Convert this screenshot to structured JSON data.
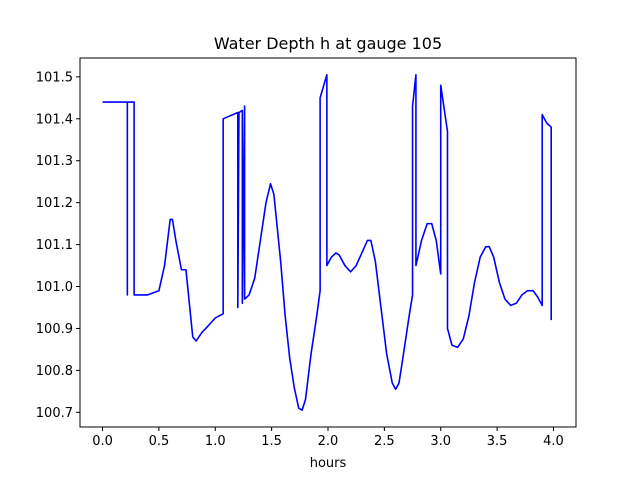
{
  "chart_data": {
    "type": "line",
    "title": "Water Depth h at gauge 105",
    "xlabel": "hours",
    "ylabel": "",
    "xlim": [
      -0.2,
      4.2
    ],
    "ylim": [
      100.665,
      101.545
    ],
    "xticks": [
      0.0,
      0.5,
      1.0,
      1.5,
      2.0,
      2.5,
      3.0,
      3.5,
      4.0
    ],
    "xtick_labels": [
      "0.0",
      "0.5",
      "1.0",
      "1.5",
      "2.0",
      "2.5",
      "3.0",
      "3.5",
      "4.0"
    ],
    "yticks": [
      100.7,
      100.8,
      100.9,
      101.0,
      101.1,
      101.2,
      101.3,
      101.4,
      101.5
    ],
    "ytick_labels": [
      "100.7",
      "100.8",
      "100.9",
      "101.0",
      "101.1",
      "101.2",
      "101.3",
      "101.4",
      "101.5"
    ],
    "grid": false,
    "series": [
      {
        "color": "#0000ff",
        "points": [
          [
            0.0,
            101.44
          ],
          [
            0.22,
            101.44
          ],
          [
            0.22,
            100.98
          ],
          [
            0.22,
            101.44
          ],
          [
            0.28,
            101.44
          ],
          [
            0.28,
            100.98
          ],
          [
            0.4,
            100.98
          ],
          [
            0.5,
            100.99
          ],
          [
            0.55,
            101.05
          ],
          [
            0.6,
            101.16
          ],
          [
            0.62,
            101.16
          ],
          [
            0.65,
            101.11
          ],
          [
            0.7,
            101.04
          ],
          [
            0.74,
            101.04
          ],
          [
            0.77,
            100.96
          ],
          [
            0.8,
            100.88
          ],
          [
            0.83,
            100.87
          ],
          [
            0.88,
            100.89
          ],
          [
            0.95,
            100.91
          ],
          [
            1.0,
            100.925
          ],
          [
            1.07,
            100.935
          ],
          [
            1.07,
            101.4
          ],
          [
            1.2,
            101.415
          ],
          [
            1.2,
            100.95
          ],
          [
            1.21,
            101.415
          ],
          [
            1.24,
            101.42
          ],
          [
            1.24,
            100.96
          ],
          [
            1.26,
            101.43
          ],
          [
            1.26,
            100.97
          ],
          [
            1.3,
            100.98
          ],
          [
            1.35,
            101.02
          ],
          [
            1.4,
            101.11
          ],
          [
            1.45,
            101.2
          ],
          [
            1.49,
            101.245
          ],
          [
            1.52,
            101.22
          ],
          [
            1.58,
            101.06
          ],
          [
            1.62,
            100.93
          ],
          [
            1.66,
            100.83
          ],
          [
            1.7,
            100.76
          ],
          [
            1.74,
            100.71
          ],
          [
            1.77,
            100.705
          ],
          [
            1.8,
            100.73
          ],
          [
            1.85,
            100.84
          ],
          [
            1.9,
            100.93
          ],
          [
            1.93,
            100.99
          ],
          [
            1.93,
            101.45
          ],
          [
            1.99,
            101.505
          ],
          [
            1.99,
            101.05
          ],
          [
            2.03,
            101.07
          ],
          [
            2.07,
            101.08
          ],
          [
            2.1,
            101.075
          ],
          [
            2.15,
            101.05
          ],
          [
            2.2,
            101.035
          ],
          [
            2.25,
            101.05
          ],
          [
            2.3,
            101.08
          ],
          [
            2.35,
            101.11
          ],
          [
            2.38,
            101.11
          ],
          [
            2.42,
            101.06
          ],
          [
            2.47,
            100.95
          ],
          [
            2.52,
            100.84
          ],
          [
            2.57,
            100.77
          ],
          [
            2.6,
            100.755
          ],
          [
            2.63,
            100.77
          ],
          [
            2.67,
            100.84
          ],
          [
            2.72,
            100.93
          ],
          [
            2.75,
            100.98
          ],
          [
            2.75,
            101.43
          ],
          [
            2.78,
            101.505
          ],
          [
            2.78,
            101.05
          ],
          [
            2.83,
            101.11
          ],
          [
            2.88,
            101.15
          ],
          [
            2.92,
            101.15
          ],
          [
            2.96,
            101.11
          ],
          [
            3.0,
            101.03
          ],
          [
            3.0,
            101.48
          ],
          [
            3.06,
            101.37
          ],
          [
            3.06,
            100.9
          ],
          [
            3.1,
            100.86
          ],
          [
            3.15,
            100.855
          ],
          [
            3.2,
            100.875
          ],
          [
            3.25,
            100.93
          ],
          [
            3.3,
            101.01
          ],
          [
            3.35,
            101.07
          ],
          [
            3.4,
            101.095
          ],
          [
            3.43,
            101.095
          ],
          [
            3.47,
            101.07
          ],
          [
            3.52,
            101.01
          ],
          [
            3.57,
            100.97
          ],
          [
            3.62,
            100.955
          ],
          [
            3.67,
            100.96
          ],
          [
            3.72,
            100.98
          ],
          [
            3.77,
            100.99
          ],
          [
            3.82,
            100.99
          ],
          [
            3.86,
            100.975
          ],
          [
            3.9,
            100.955
          ],
          [
            3.9,
            101.41
          ],
          [
            3.94,
            101.39
          ],
          [
            3.98,
            101.38
          ],
          [
            3.98,
            100.92
          ]
        ]
      }
    ]
  }
}
